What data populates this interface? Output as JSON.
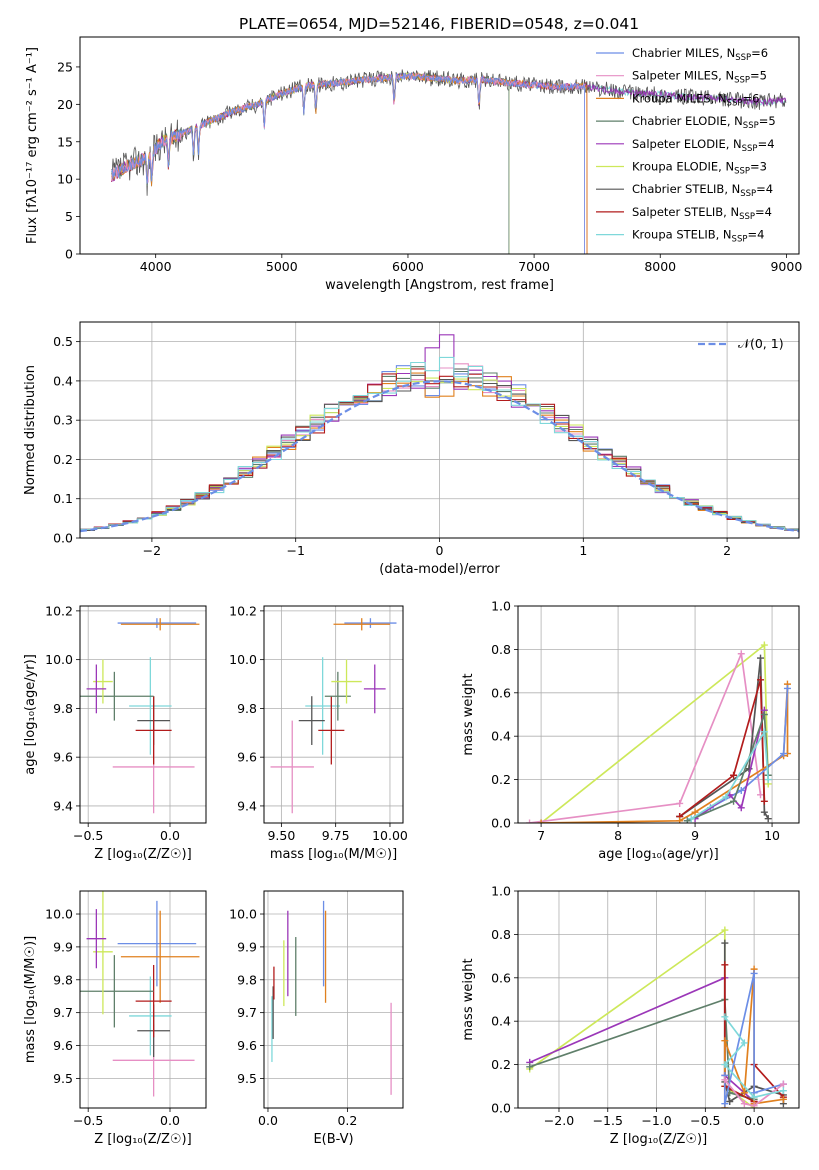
{
  "figure_title": "PLATE=0654, MJD=52146, FIBERID=0548, z=0.041",
  "colors": {
    "ch_miles": "#6c8ee6",
    "sa_miles": "#e68fc4",
    "kr_miles": "#e0801f",
    "ch_elodie": "#5f7f6a",
    "sa_elodie": "#9b37b8",
    "kr_elodie": "#cde85a",
    "ch_stelib": "#555555",
    "sa_stelib": "#b21c1c",
    "kr_stelib": "#7fd8da"
  },
  "chart_data": [
    {
      "type": "line",
      "name": "spectrum",
      "xlabel": "wavelength [Angstrom, rest frame]",
      "ylabel": "Flux [fλ10⁻¹⁷ erg cm⁻² s⁻¹ A⁻¹]",
      "xlim": [
        3400,
        9100
      ],
      "ylim": [
        0,
        29
      ],
      "xticks": [
        4000,
        5000,
        6000,
        7000,
        8000,
        9000
      ],
      "yticks": [
        0,
        5,
        10,
        15,
        20,
        25
      ],
      "grid": false,
      "legend_position": "top-right",
      "legend": [
        {
          "key": "ch_miles",
          "label": "Chabrier MILES, N",
          "sub": "SSP",
          "suffix": "=6"
        },
        {
          "key": "sa_miles",
          "label": "Salpeter MILES, N",
          "sub": "SSP",
          "suffix": "=5"
        },
        {
          "key": "kr_miles",
          "label": "Kroupa MILES, N",
          "sub": "SSP",
          "suffix": "=6"
        },
        {
          "key": "ch_elodie",
          "label": "Chabrier ELODIE, N",
          "sub": "SSP",
          "suffix": "=5"
        },
        {
          "key": "sa_elodie",
          "label": "Salpeter ELODIE, N",
          "sub": "SSP",
          "suffix": "=4"
        },
        {
          "key": "kr_elodie",
          "label": "Kroupa ELODIE, N",
          "sub": "SSP",
          "suffix": "=3"
        },
        {
          "key": "ch_stelib",
          "label": "Chabrier STELIB, N",
          "sub": "SSP",
          "suffix": "=4"
        },
        {
          "key": "sa_stelib",
          "label": "Salpeter STELIB, N",
          "sub": "SSP",
          "suffix": "=4"
        },
        {
          "key": "kr_stelib",
          "label": "Kroupa STELIB, N",
          "sub": "SSP",
          "suffix": "=4"
        }
      ],
      "continuum": [
        [
          3650,
          10.5
        ],
        [
          3800,
          12
        ],
        [
          3950,
          13
        ],
        [
          4050,
          15
        ],
        [
          4200,
          16
        ],
        [
          4400,
          17.5
        ],
        [
          4600,
          19
        ],
        [
          4800,
          20
        ],
        [
          5000,
          21.5
        ],
        [
          5200,
          22.5
        ],
        [
          5400,
          22.8
        ],
        [
          5600,
          23.2
        ],
        [
          5800,
          23.5
        ],
        [
          6000,
          23.8
        ],
        [
          6200,
          23.5
        ],
        [
          6400,
          23.2
        ],
        [
          6600,
          23.3
        ],
        [
          6800,
          22.9
        ],
        [
          7000,
          22.6
        ],
        [
          7200,
          22.3
        ],
        [
          7400,
          22.5
        ],
        [
          7600,
          21.9
        ],
        [
          7800,
          21.5
        ],
        [
          8000,
          21.3
        ],
        [
          8200,
          21
        ],
        [
          8400,
          20.8
        ],
        [
          8600,
          20.6
        ],
        [
          8800,
          20.3
        ],
        [
          9000,
          20.5
        ]
      ],
      "range_ends": {
        "ch_miles": 7400,
        "sa_miles": 7400,
        "kr_miles": 7420,
        "sa_stelib": 7420,
        "ch_elodie": 6800,
        "kr_elodie": 6800
      }
    },
    {
      "type": "histogram",
      "name": "residuals",
      "xlabel": "(data-model)/error",
      "ylabel": "Normed distribution",
      "xlim": [
        -2.5,
        2.5
      ],
      "ylim": [
        0,
        0.55
      ],
      "xticks": [
        -2,
        -1,
        0,
        1,
        2
      ],
      "yticks": [
        0,
        0.1,
        0.2,
        0.3,
        0.4,
        0.5
      ],
      "grid": true,
      "legend_position": "top-right",
      "reference_label": "𝒩(0, 1)",
      "bin_width": 0.1,
      "peaks": {
        "ch_miles": 0.42,
        "sa_miles": 0.44,
        "kr_miles": 0.41,
        "ch_elodie": 0.43,
        "sa_elodie": 0.53,
        "kr_elodie": 0.45,
        "ch_stelib": 0.44,
        "sa_stelib": 0.43,
        "kr_stelib": 0.46
      }
    },
    {
      "type": "errorbar",
      "name": "age-vs-Z",
      "xlabel": "Z [log₁₀(Z/Z☉)]",
      "ylabel": "age [log₁₀(age/yr)]",
      "xlim": [
        -0.55,
        0.22
      ],
      "ylim": [
        9.33,
        10.22
      ],
      "xticks": [
        -0.5,
        0.0
      ],
      "xticklabels": [
        "−0.5",
        "0.0"
      ],
      "yticks": [
        9.4,
        9.6,
        9.8,
        10.0,
        10.2
      ],
      "grid": true,
      "points": [
        {
          "key": "ch_miles",
          "x": -0.08,
          "xerr": 0.24,
          "y": 10.15,
          "yerr": 0.02
        },
        {
          "key": "kr_miles",
          "x": -0.06,
          "xerr": 0.24,
          "y": 10.145,
          "yerr": 0.025
        },
        {
          "key": "sa_miles",
          "x": -0.1,
          "xerr": 0.25,
          "y": 9.56,
          "yerr": 0.19
        },
        {
          "key": "kr_stelib",
          "x": -0.12,
          "xerr": 0.13,
          "y": 9.81,
          "yerr": 0.2
        },
        {
          "key": "ch_stelib",
          "x": -0.1,
          "xerr": 0.1,
          "y": 9.75,
          "yerr": 0.1
        },
        {
          "key": "sa_stelib",
          "x": -0.1,
          "xerr": 0.11,
          "y": 9.71,
          "yerr": 0.14
        },
        {
          "key": "ch_elodie",
          "x": -0.34,
          "xerr": 0.24,
          "y": 9.85,
          "yerr": 0.1
        },
        {
          "key": "kr_elodie",
          "x": -0.41,
          "xerr": 0.06,
          "y": 9.91,
          "yerr": 0.09
        },
        {
          "key": "sa_elodie",
          "x": -0.45,
          "xerr": 0.06,
          "y": 9.88,
          "yerr": 0.1
        }
      ]
    },
    {
      "type": "errorbar",
      "name": "age-vs-mass",
      "xlabel": "mass [log₁₀(M/M☉)]",
      "ylabel": "",
      "xlim": [
        9.42,
        10.06
      ],
      "ylim": [
        9.33,
        10.22
      ],
      "xticks": [
        9.5,
        9.75,
        10.0
      ],
      "xticklabels": [
        "9.50",
        "9.75",
        "10.00"
      ],
      "yticks": [
        9.4,
        9.6,
        9.8,
        10.0,
        10.2
      ],
      "grid": true,
      "points": [
        {
          "key": "ch_miles",
          "x": 9.91,
          "xerr": 0.12,
          "y": 10.15,
          "yerr": 0.02
        },
        {
          "key": "kr_miles",
          "x": 9.87,
          "xerr": 0.13,
          "y": 10.145,
          "yerr": 0.025
        },
        {
          "key": "sa_miles",
          "x": 9.55,
          "xerr": 0.1,
          "y": 9.56,
          "yerr": 0.19
        },
        {
          "key": "kr_stelib",
          "x": 9.69,
          "xerr": 0.08,
          "y": 9.81,
          "yerr": 0.2
        },
        {
          "key": "ch_stelib",
          "x": 9.64,
          "xerr": 0.06,
          "y": 9.75,
          "yerr": 0.1
        },
        {
          "key": "sa_stelib",
          "x": 9.73,
          "xerr": 0.06,
          "y": 9.71,
          "yerr": 0.14
        },
        {
          "key": "ch_elodie",
          "x": 9.76,
          "xerr": 0.06,
          "y": 9.85,
          "yerr": 0.1
        },
        {
          "key": "kr_elodie",
          "x": 9.8,
          "xerr": 0.07,
          "y": 9.91,
          "yerr": 0.09
        },
        {
          "key": "sa_elodie",
          "x": 9.93,
          "xerr": 0.05,
          "y": 9.88,
          "yerr": 0.1
        }
      ]
    },
    {
      "type": "line",
      "name": "mass-weight-vs-age",
      "xlabel": "age [log₁₀(age/yr)]",
      "ylabel": "mass weight",
      "xlim": [
        6.7,
        10.35
      ],
      "ylim": [
        0,
        1
      ],
      "xticks": [
        7,
        8,
        9,
        10
      ],
      "yticks": [
        0,
        0.2,
        0.4,
        0.6,
        0.8,
        1.0
      ],
      "grid": true,
      "series": [
        {
          "key": "kr_elodie",
          "x": [
            7.0,
            9.9,
            9.95
          ],
          "y": [
            0.0,
            0.82,
            0.18
          ]
        },
        {
          "key": "sa_miles",
          "x": [
            6.85,
            8.8,
            9.6,
            9.85
          ],
          "y": [
            0.0,
            0.09,
            0.78,
            0.13
          ]
        },
        {
          "key": "ch_stelib",
          "x": [
            8.8,
            9.7,
            9.85,
            9.9,
            9.95
          ],
          "y": [
            0.03,
            0.25,
            0.76,
            0.05,
            0.02
          ]
        },
        {
          "key": "sa_stelib",
          "x": [
            8.8,
            9.5,
            9.85,
            9.9
          ],
          "y": [
            0.03,
            0.22,
            0.66,
            0.1
          ]
        },
        {
          "key": "kr_miles",
          "x": [
            7.0,
            8.8,
            9.0,
            10.15,
            10.2,
            10.2
          ],
          "y": [
            0.0,
            0.01,
            0.05,
            0.31,
            0.64,
            0.32
          ]
        },
        {
          "key": "ch_miles",
          "x": [
            8.9,
            9.2,
            9.6,
            10.15,
            10.2
          ],
          "y": [
            0.01,
            0.07,
            0.15,
            0.32,
            0.62
          ]
        },
        {
          "key": "sa_elodie",
          "x": [
            9.0,
            9.45,
            9.6,
            9.9
          ],
          "y": [
            0.02,
            0.13,
            0.07,
            0.52
          ]
        },
        {
          "key": "ch_elodie",
          "x": [
            8.9,
            9.5,
            9.9,
            9.95
          ],
          "y": [
            0.01,
            0.1,
            0.5,
            0.22
          ]
        },
        {
          "key": "kr_stelib",
          "x": [
            8.95,
            9.4,
            9.9,
            9.95
          ],
          "y": [
            0.02,
            0.12,
            0.42,
            0.2
          ]
        }
      ]
    },
    {
      "type": "errorbar",
      "name": "mass-vs-Z",
      "xlabel": "Z [log₁₀(Z/Z☉)]",
      "ylabel": "mass [log₁₀(M/M☉)]",
      "xlim": [
        -0.55,
        0.22
      ],
      "ylim": [
        9.41,
        10.07
      ],
      "xticks": [
        -0.5,
        0.0
      ],
      "xticklabels": [
        "−0.5",
        "0.0"
      ],
      "yticks": [
        9.5,
        9.6,
        9.7,
        9.8,
        9.9,
        10.0
      ],
      "grid": true,
      "points": [
        {
          "key": "ch_miles",
          "x": -0.08,
          "xerr": 0.24,
          "y": 9.91,
          "yerr": 0.13
        },
        {
          "key": "kr_miles",
          "x": -0.06,
          "xerr": 0.24,
          "y": 9.87,
          "yerr": 0.14
        },
        {
          "key": "sa_miles",
          "x": -0.1,
          "xerr": 0.25,
          "y": 9.555,
          "yerr": 0.11
        },
        {
          "key": "kr_stelib",
          "x": -0.12,
          "xerr": 0.13,
          "y": 9.69,
          "yerr": 0.12
        },
        {
          "key": "ch_stelib",
          "x": -0.1,
          "xerr": 0.1,
          "y": 9.645,
          "yerr": 0.08
        },
        {
          "key": "sa_stelib",
          "x": -0.1,
          "xerr": 0.11,
          "y": 9.735,
          "yerr": 0.11
        },
        {
          "key": "ch_elodie",
          "x": -0.34,
          "xerr": 0.24,
          "y": 9.765,
          "yerr": 0.11
        },
        {
          "key": "kr_elodie",
          "x": -0.41,
          "xerr": 0.06,
          "y": 9.885,
          "yerr": 0.19
        },
        {
          "key": "sa_elodie",
          "x": -0.45,
          "xerr": 0.06,
          "y": 9.925,
          "yerr": 0.09
        }
      ]
    },
    {
      "type": "errorbar",
      "name": "mass-vs-ebv",
      "xlabel": "E(B-V)",
      "ylabel": "",
      "xlim": [
        -0.01,
        0.34
      ],
      "ylim": [
        9.41,
        10.07
      ],
      "xticks": [
        0.0,
        0.2
      ],
      "xticklabels": [
        "0.0",
        "0.2"
      ],
      "yticks": [
        9.5,
        9.6,
        9.7,
        9.8,
        9.9,
        10.0
      ],
      "grid": true,
      "points": [
        {
          "key": "ch_miles",
          "x": 0.14,
          "y": 9.91,
          "yerr": 0.13
        },
        {
          "key": "kr_miles",
          "x": 0.145,
          "y": 9.87,
          "yerr": 0.14
        },
        {
          "key": "sa_miles",
          "x": 0.31,
          "y": 9.59,
          "yerr": 0.14
        },
        {
          "key": "kr_stelib",
          "x": 0.01,
          "y": 9.65,
          "yerr": 0.1
        },
        {
          "key": "ch_stelib",
          "x": 0.013,
          "y": 9.7,
          "yerr": 0.08
        },
        {
          "key": "sa_stelib",
          "x": 0.015,
          "y": 9.79,
          "yerr": 0.05
        },
        {
          "key": "ch_elodie",
          "x": 0.07,
          "y": 9.81,
          "yerr": 0.12
        },
        {
          "key": "kr_elodie",
          "x": 0.04,
          "y": 9.82,
          "yerr": 0.1
        },
        {
          "key": "sa_elodie",
          "x": 0.05,
          "y": 9.88,
          "yerr": 0.13
        }
      ]
    },
    {
      "type": "line",
      "name": "mass-weight-vs-Z",
      "xlabel": "Z [log₁₀(Z/Z☉)]",
      "ylabel": "mass weight",
      "xlim": [
        -2.42,
        0.46
      ],
      "ylim": [
        0,
        1
      ],
      "xticks": [
        -2.0,
        -1.5,
        -1.0,
        -0.5,
        0.0
      ],
      "xticklabels": [
        "−2.0",
        "−1.5",
        "−1.0",
        "−0.5",
        "0.0"
      ],
      "yticks": [
        0,
        0.2,
        0.4,
        0.6,
        0.8,
        1.0
      ],
      "grid": true,
      "series": [
        {
          "key": "kr_elodie",
          "x": [
            -2.3,
            -0.3,
            -0.3,
            0.0,
            0.0
          ],
          "y": [
            0.18,
            0.82,
            0.1,
            0.0,
            0.02
          ]
        },
        {
          "key": "sa_elodie",
          "x": [
            -2.3,
            -0.3,
            -0.3,
            0.0
          ],
          "y": [
            0.21,
            0.6,
            0.15,
            0.03
          ]
        },
        {
          "key": "ch_elodie",
          "x": [
            -2.3,
            -0.3,
            -0.25,
            0.0
          ],
          "y": [
            0.19,
            0.5,
            0.07,
            0.04
          ]
        },
        {
          "key": "ch_stelib",
          "x": [
            -0.3,
            -0.3,
            -0.25,
            0.0,
            0.3,
            0.3
          ],
          "y": [
            0.76,
            0.12,
            0.03,
            0.1,
            0.06,
            0.02
          ]
        },
        {
          "key": "sa_stelib",
          "x": [
            -0.3,
            -0.3,
            0.0,
            0.0,
            0.3
          ],
          "y": [
            0.66,
            0.1,
            0.03,
            0.2,
            0.05
          ]
        },
        {
          "key": "kr_miles",
          "x": [
            -0.3,
            -0.3,
            -0.1,
            0.0,
            0.0,
            0.3
          ],
          "y": [
            0.0,
            0.31,
            0.07,
            0.64,
            0.02,
            0.04
          ]
        },
        {
          "key": "ch_miles",
          "x": [
            -0.3,
            -0.3,
            0.0,
            0.0,
            0.3
          ],
          "y": [
            0.15,
            0.02,
            0.62,
            0.07,
            0.11
          ]
        },
        {
          "key": "sa_miles",
          "x": [
            -0.3,
            -0.1,
            0.0,
            0.3
          ],
          "y": [
            0.13,
            0.02,
            0.01,
            0.11
          ]
        },
        {
          "key": "kr_stelib",
          "x": [
            -0.3,
            -0.1,
            -0.3,
            0.0,
            0.3
          ],
          "y": [
            0.42,
            0.3,
            0.2,
            0.05,
            0.08
          ]
        }
      ]
    }
  ]
}
